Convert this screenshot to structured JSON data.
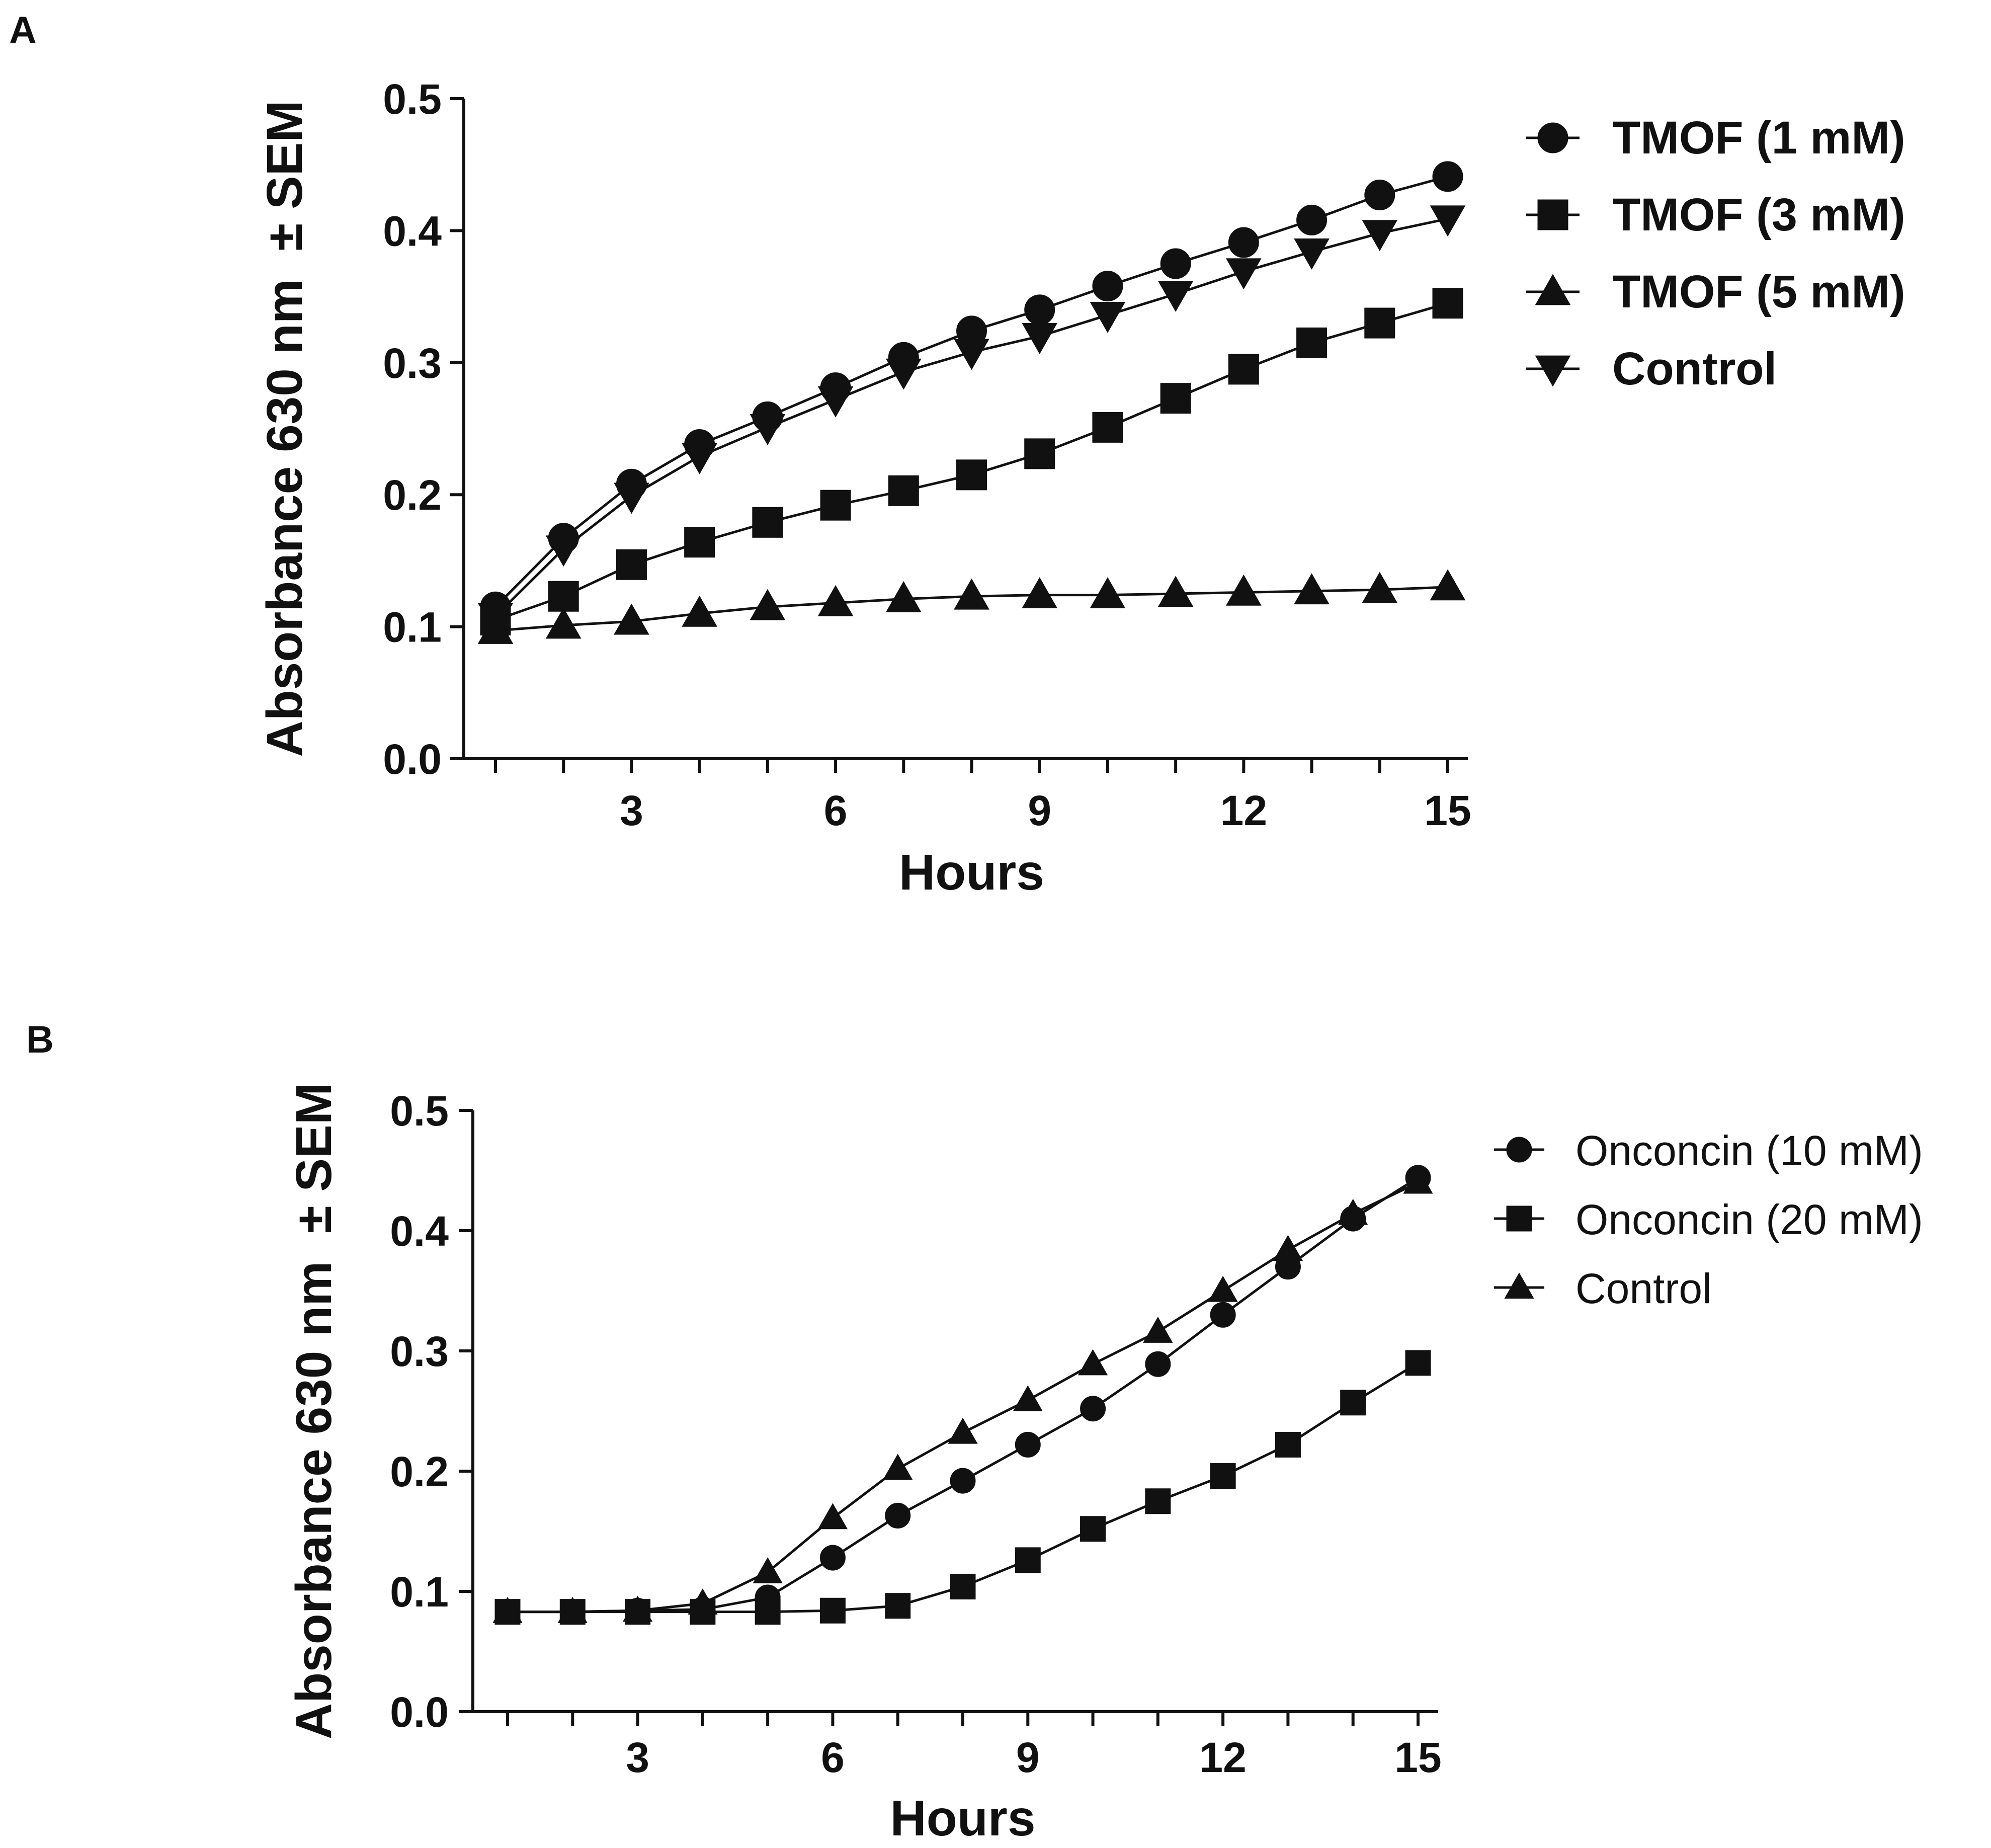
{
  "colors": {
    "ink": "#111111",
    "background": "#ffffff"
  },
  "chart_data": [
    {
      "type": "line",
      "panel_label": "A",
      "title": "",
      "xlabel": "Hours",
      "ylabel": "Absorbance 630 nm  ± SEM",
      "xlim": [
        0.5,
        15.5
      ],
      "ylim": [
        0.0,
        0.5
      ],
      "xticks": [
        3,
        6,
        9,
        12,
        15
      ],
      "xtick_labels": [
        "3",
        "6",
        "9",
        "12",
        "15"
      ],
      "yticks": [
        0.0,
        0.1,
        0.2,
        0.3,
        0.4,
        0.5
      ],
      "ytick_labels": [
        "0.0",
        "0.1",
        "0.2",
        "0.3",
        "0.4",
        "0.5"
      ],
      "grid": false,
      "legend_position": "right",
      "x": [
        1,
        2,
        3,
        4,
        5,
        6,
        7,
        8,
        9,
        10,
        11,
        12,
        13,
        14,
        15
      ],
      "series": [
        {
          "name": "TMOF (1 mM)",
          "marker": "circle",
          "values": [
            0.115,
            0.167,
            0.208,
            0.238,
            0.259,
            0.281,
            0.304,
            0.324,
            0.34,
            0.358,
            0.375,
            0.391,
            0.408,
            0.427,
            0.441
          ]
        },
        {
          "name": "TMOF (3 mM)",
          "marker": "square",
          "values": [
            0.105,
            0.123,
            0.147,
            0.164,
            0.179,
            0.192,
            0.203,
            0.215,
            0.231,
            0.251,
            0.273,
            0.295,
            0.315,
            0.33,
            0.345
          ]
        },
        {
          "name": "TMOF (5 mM)",
          "marker": "triangle-up",
          "values": [
            0.097,
            0.101,
            0.104,
            0.11,
            0.115,
            0.118,
            0.121,
            0.123,
            0.124,
            0.124,
            0.125,
            0.126,
            0.127,
            0.128,
            0.13
          ]
        },
        {
          "name": "Control",
          "marker": "triangle-down",
          "values": [
            0.108,
            0.159,
            0.199,
            0.229,
            0.251,
            0.272,
            0.293,
            0.308,
            0.32,
            0.336,
            0.352,
            0.369,
            0.384,
            0.398,
            0.409
          ]
        }
      ]
    },
    {
      "type": "line",
      "panel_label": "B",
      "title": "",
      "xlabel": "Hours",
      "ylabel": "Absorbance 630 nm  ± SEM",
      "xlim": [
        0.5,
        15.5
      ],
      "ylim": [
        0.0,
        0.5
      ],
      "xticks": [
        3,
        6,
        9,
        12,
        15
      ],
      "xtick_labels": [
        "3",
        "6",
        "9",
        "12",
        "15"
      ],
      "yticks": [
        0.0,
        0.1,
        0.2,
        0.3,
        0.4,
        0.5
      ],
      "ytick_labels": [
        "0.0",
        "0.1",
        "0.2",
        "0.3",
        "0.4",
        "0.5"
      ],
      "grid": false,
      "legend_position": "right",
      "x": [
        1,
        2,
        3,
        4,
        5,
        6,
        7,
        8,
        9,
        10,
        11,
        12,
        13,
        14,
        15
      ],
      "series": [
        {
          "name": "Onconcin (10 mM)",
          "marker": "circle",
          "values": [
            0.083,
            0.083,
            0.084,
            0.085,
            0.095,
            0.128,
            0.163,
            0.192,
            0.222,
            0.252,
            0.289,
            0.33,
            0.37,
            0.41,
            0.444
          ]
        },
        {
          "name": "Onconcin (20 mM)",
          "marker": "square",
          "values": [
            0.083,
            0.083,
            0.083,
            0.083,
            0.083,
            0.084,
            0.088,
            0.104,
            0.126,
            0.152,
            0.175,
            0.196,
            0.222,
            0.257,
            0.29
          ]
        },
        {
          "name": "Control",
          "marker": "triangle-up",
          "values": [
            0.083,
            0.083,
            0.084,
            0.09,
            0.116,
            0.161,
            0.202,
            0.232,
            0.259,
            0.289,
            0.316,
            0.35,
            0.384,
            0.414,
            0.44
          ]
        }
      ]
    }
  ]
}
